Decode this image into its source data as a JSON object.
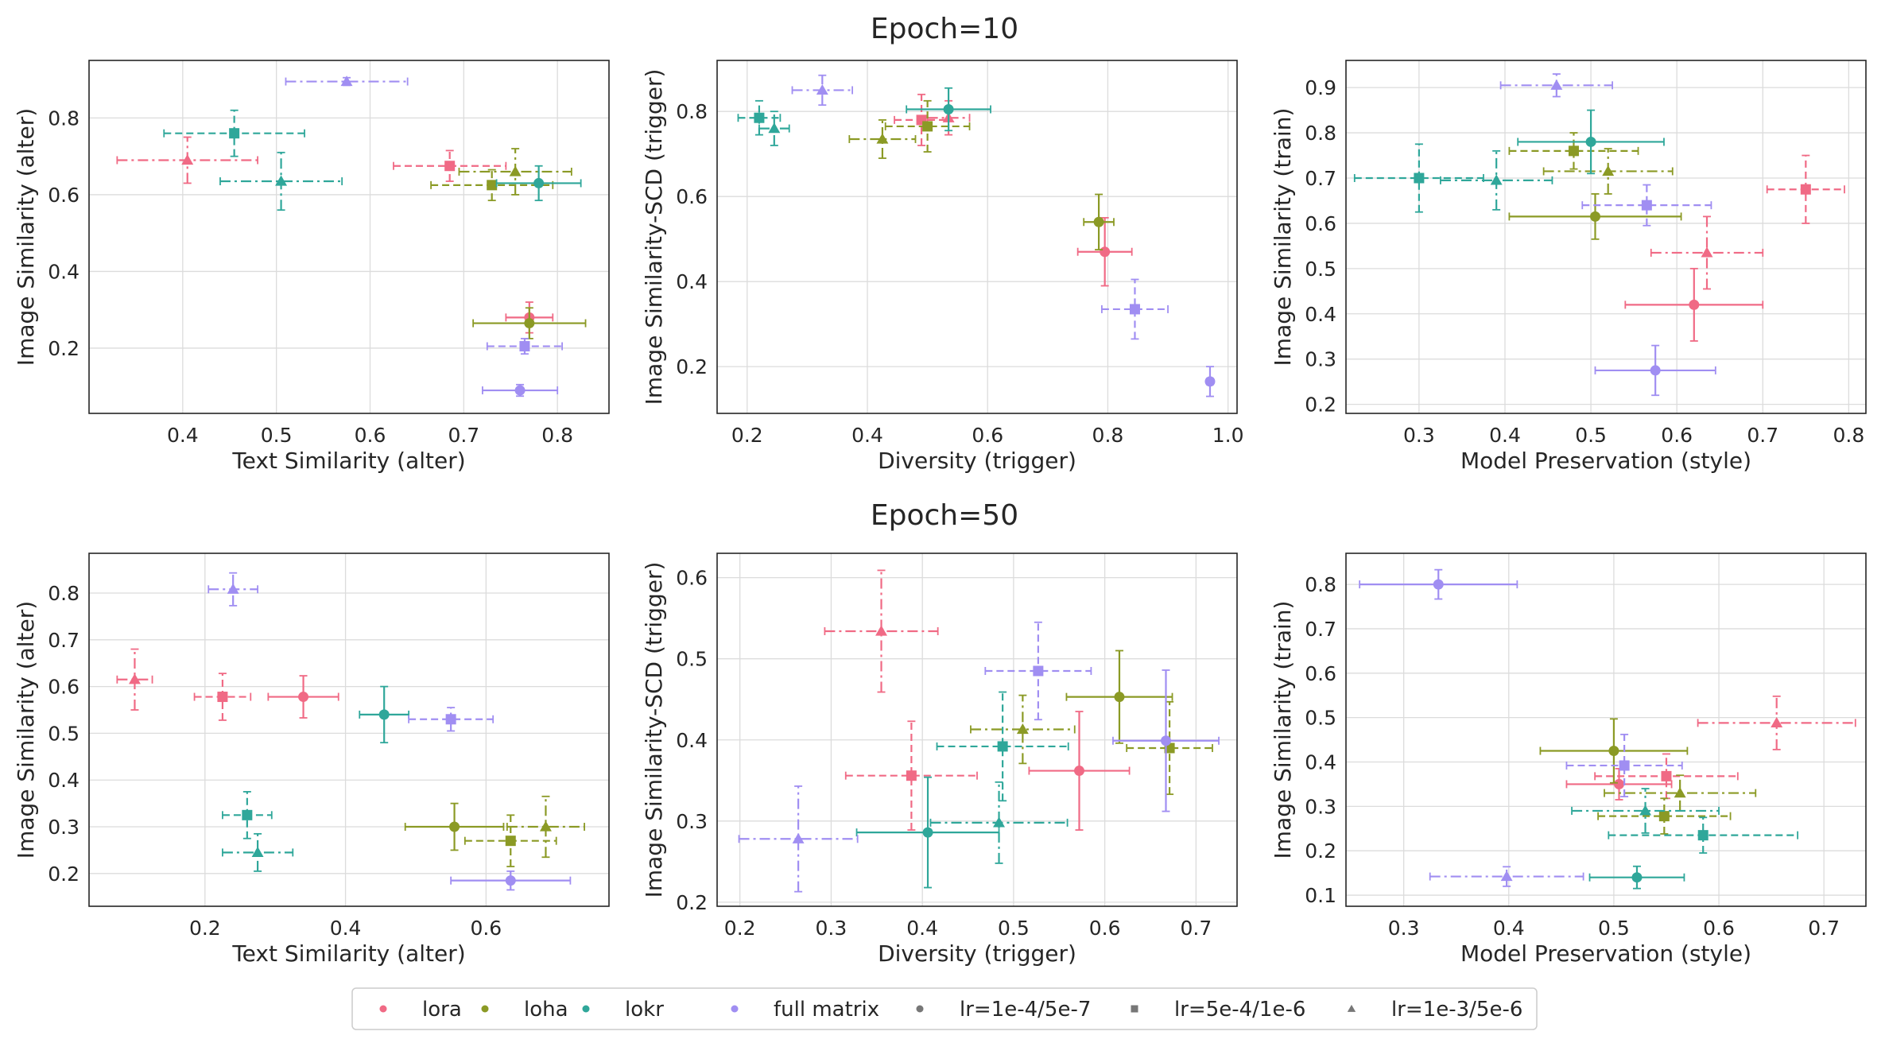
{
  "figure": {
    "row_titles": [
      "Epoch=10",
      "Epoch=50"
    ],
    "colors": {
      "lora": "#f06a85",
      "loha": "#8b9a25",
      "lokr": "#2fa79a",
      "full matrix": "#a08ef2"
    },
    "legend": {
      "placement": "bottom-center",
      "methods": [
        {
          "label": "lora",
          "color": "#f06a85"
        },
        {
          "label": "loha",
          "color": "#8b9a25"
        },
        {
          "label": "lokr",
          "color": "#2fa79a"
        },
        {
          "label": "full matrix",
          "color": "#a08ef2"
        }
      ],
      "lr_settings": [
        {
          "label": "lr=1e-4/5e-7",
          "marker": "circle",
          "line_style": "solid"
        },
        {
          "label": "lr=5e-4/1e-6",
          "marker": "square",
          "line_style": "dashed"
        },
        {
          "label": "lr=1e-3/5e-6",
          "marker": "triangle",
          "line_style": "dashdot"
        }
      ]
    }
  },
  "chart_data": [
    {
      "type": "scatter",
      "panel": "epoch10-text",
      "grid": true,
      "xlabel": "Text Similarity (alter)",
      "ylabel": "Image Similarity (alter)",
      "xlim": [
        0.3,
        0.855
      ],
      "ylim": [
        0.03,
        0.95
      ],
      "xticks": [
        0.4,
        0.5,
        0.6,
        0.7,
        0.8
      ],
      "yticks": [
        0.2,
        0.4,
        0.6,
        0.8
      ],
      "points": [
        {
          "method": "lora",
          "lr": 0,
          "x": 0.77,
          "y": 0.28,
          "xerr": 0.025,
          "yerr": 0.04
        },
        {
          "method": "lora",
          "lr": 1,
          "x": 0.685,
          "y": 0.675,
          "xerr": 0.06,
          "yerr": 0.04
        },
        {
          "method": "lora",
          "lr": 2,
          "x": 0.405,
          "y": 0.69,
          "xerr": 0.075,
          "yerr": 0.06
        },
        {
          "method": "loha",
          "lr": 0,
          "x": 0.77,
          "y": 0.265,
          "xerr": 0.06,
          "yerr": 0.04
        },
        {
          "method": "loha",
          "lr": 1,
          "x": 0.73,
          "y": 0.625,
          "xerr": 0.065,
          "yerr": 0.04
        },
        {
          "method": "loha",
          "lr": 2,
          "x": 0.755,
          "y": 0.66,
          "xerr": 0.06,
          "yerr": 0.06
        },
        {
          "method": "lokr",
          "lr": 0,
          "x": 0.78,
          "y": 0.63,
          "xerr": 0.045,
          "yerr": 0.045
        },
        {
          "method": "lokr",
          "lr": 1,
          "x": 0.455,
          "y": 0.76,
          "xerr": 0.075,
          "yerr": 0.06
        },
        {
          "method": "lokr",
          "lr": 2,
          "x": 0.505,
          "y": 0.635,
          "xerr": 0.065,
          "yerr": 0.075
        },
        {
          "method": "full matrix",
          "lr": 0,
          "x": 0.76,
          "y": 0.09,
          "xerr": 0.04,
          "yerr": 0.015
        },
        {
          "method": "full matrix",
          "lr": 1,
          "x": 0.765,
          "y": 0.205,
          "xerr": 0.04,
          "yerr": 0.02
        },
        {
          "method": "full matrix",
          "lr": 2,
          "x": 0.575,
          "y": 0.895,
          "xerr": 0.065,
          "yerr": 0.01
        }
      ]
    },
    {
      "type": "scatter",
      "panel": "epoch10-diversity",
      "grid": true,
      "xlabel": "Diversity (trigger)",
      "ylabel": "Image Similarity-SCD (trigger)",
      "xlim": [
        0.15,
        1.015
      ],
      "ylim": [
        0.09,
        0.92
      ],
      "xticks": [
        0.2,
        0.4,
        0.6,
        0.8,
        1.0
      ],
      "yticks": [
        0.2,
        0.4,
        0.6,
        0.8
      ],
      "points": [
        {
          "method": "lora",
          "lr": 0,
          "x": 0.795,
          "y": 0.47,
          "xerr": 0.045,
          "yerr": 0.08
        },
        {
          "method": "lora",
          "lr": 1,
          "x": 0.49,
          "y": 0.78,
          "xerr": 0.045,
          "yerr": 0.06
        },
        {
          "method": "lora",
          "lr": 2,
          "x": 0.535,
          "y": 0.785,
          "xerr": 0.035,
          "yerr": 0.04
        },
        {
          "method": "loha",
          "lr": 0,
          "x": 0.785,
          "y": 0.54,
          "xerr": 0.025,
          "yerr": 0.065
        },
        {
          "method": "loha",
          "lr": 1,
          "x": 0.5,
          "y": 0.765,
          "xerr": 0.07,
          "yerr": 0.06
        },
        {
          "method": "loha",
          "lr": 2,
          "x": 0.425,
          "y": 0.735,
          "xerr": 0.055,
          "yerr": 0.045
        },
        {
          "method": "lokr",
          "lr": 0,
          "x": 0.535,
          "y": 0.805,
          "xerr": 0.07,
          "yerr": 0.05
        },
        {
          "method": "lokr",
          "lr": 1,
          "x": 0.22,
          "y": 0.785,
          "xerr": 0.035,
          "yerr": 0.04
        },
        {
          "method": "lokr",
          "lr": 2,
          "x": 0.245,
          "y": 0.76,
          "xerr": 0.025,
          "yerr": 0.04
        },
        {
          "method": "full matrix",
          "lr": 0,
          "x": 0.97,
          "y": 0.165,
          "xerr": 0.005,
          "yerr": 0.035
        },
        {
          "method": "full matrix",
          "lr": 1,
          "x": 0.845,
          "y": 0.335,
          "xerr": 0.055,
          "yerr": 0.07
        },
        {
          "method": "full matrix",
          "lr": 2,
          "x": 0.325,
          "y": 0.85,
          "xerr": 0.05,
          "yerr": 0.035
        }
      ]
    },
    {
      "type": "scatter",
      "panel": "epoch10-preservation",
      "grid": true,
      "xlabel": "Model Preservation (style)",
      "ylabel": "Image Similarity (train)",
      "xlim": [
        0.215,
        0.82
      ],
      "ylim": [
        0.18,
        0.96
      ],
      "xticks": [
        0.3,
        0.4,
        0.5,
        0.6,
        0.7,
        0.8
      ],
      "yticks": [
        0.2,
        0.3,
        0.4,
        0.5,
        0.6,
        0.7,
        0.8,
        0.9
      ],
      "points": [
        {
          "method": "lora",
          "lr": 0,
          "x": 0.62,
          "y": 0.42,
          "xerr": 0.08,
          "yerr": 0.08
        },
        {
          "method": "lora",
          "lr": 1,
          "x": 0.75,
          "y": 0.675,
          "xerr": 0.045,
          "yerr": 0.075
        },
        {
          "method": "lora",
          "lr": 2,
          "x": 0.635,
          "y": 0.535,
          "xerr": 0.065,
          "yerr": 0.08
        },
        {
          "method": "loha",
          "lr": 0,
          "x": 0.505,
          "y": 0.615,
          "xerr": 0.1,
          "yerr": 0.05
        },
        {
          "method": "loha",
          "lr": 1,
          "x": 0.48,
          "y": 0.76,
          "xerr": 0.075,
          "yerr": 0.04
        },
        {
          "method": "loha",
          "lr": 2,
          "x": 0.52,
          "y": 0.715,
          "xerr": 0.075,
          "yerr": 0.05
        },
        {
          "method": "lokr",
          "lr": 0,
          "x": 0.5,
          "y": 0.78,
          "xerr": 0.085,
          "yerr": 0.07
        },
        {
          "method": "lokr",
          "lr": 1,
          "x": 0.3,
          "y": 0.7,
          "xerr": 0.075,
          "yerr": 0.075
        },
        {
          "method": "lokr",
          "lr": 2,
          "x": 0.39,
          "y": 0.695,
          "xerr": 0.065,
          "yerr": 0.065
        },
        {
          "method": "full matrix",
          "lr": 0,
          "x": 0.575,
          "y": 0.275,
          "xerr": 0.07,
          "yerr": 0.055
        },
        {
          "method": "full matrix",
          "lr": 1,
          "x": 0.565,
          "y": 0.64,
          "xerr": 0.075,
          "yerr": 0.045
        },
        {
          "method": "full matrix",
          "lr": 2,
          "x": 0.46,
          "y": 0.905,
          "xerr": 0.065,
          "yerr": 0.025
        }
      ]
    },
    {
      "type": "scatter",
      "panel": "epoch50-text",
      "grid": true,
      "xlabel": "Text Similarity (alter)",
      "ylabel": "Image Similarity (alter)",
      "xlim": [
        0.035,
        0.775
      ],
      "ylim": [
        0.13,
        0.885
      ],
      "xticks": [
        0.2,
        0.4,
        0.6
      ],
      "yticks": [
        0.2,
        0.3,
        0.4,
        0.5,
        0.6,
        0.7,
        0.8
      ],
      "points": [
        {
          "method": "lora",
          "lr": 0,
          "x": 0.34,
          "y": 0.578,
          "xerr": 0.05,
          "yerr": 0.045
        },
        {
          "method": "lora",
          "lr": 1,
          "x": 0.225,
          "y": 0.578,
          "xerr": 0.04,
          "yerr": 0.05
        },
        {
          "method": "lora",
          "lr": 2,
          "x": 0.1,
          "y": 0.615,
          "xerr": 0.025,
          "yerr": 0.065
        },
        {
          "method": "loha",
          "lr": 0,
          "x": 0.555,
          "y": 0.3,
          "xerr": 0.07,
          "yerr": 0.05
        },
        {
          "method": "loha",
          "lr": 1,
          "x": 0.635,
          "y": 0.27,
          "xerr": 0.065,
          "yerr": 0.055
        },
        {
          "method": "loha",
          "lr": 2,
          "x": 0.685,
          "y": 0.3,
          "xerr": 0.055,
          "yerr": 0.065
        },
        {
          "method": "lokr",
          "lr": 0,
          "x": 0.455,
          "y": 0.54,
          "xerr": 0.035,
          "yerr": 0.06
        },
        {
          "method": "lokr",
          "lr": 1,
          "x": 0.26,
          "y": 0.325,
          "xerr": 0.035,
          "yerr": 0.05
        },
        {
          "method": "lokr",
          "lr": 2,
          "x": 0.275,
          "y": 0.245,
          "xerr": 0.05,
          "yerr": 0.04
        },
        {
          "method": "full matrix",
          "lr": 0,
          "x": 0.635,
          "y": 0.185,
          "xerr": 0.085,
          "yerr": 0.02
        },
        {
          "method": "full matrix",
          "lr": 1,
          "x": 0.55,
          "y": 0.53,
          "xerr": 0.06,
          "yerr": 0.025
        },
        {
          "method": "full matrix",
          "lr": 2,
          "x": 0.24,
          "y": 0.808,
          "xerr": 0.035,
          "yerr": 0.035
        }
      ]
    },
    {
      "type": "scatter",
      "panel": "epoch50-diversity",
      "grid": true,
      "xlabel": "Diversity (trigger)",
      "ylabel": "Image Similarity-SCD (trigger)",
      "xlim": [
        0.175,
        0.745
      ],
      "ylim": [
        0.195,
        0.63
      ],
      "xticks": [
        0.2,
        0.3,
        0.4,
        0.5,
        0.6,
        0.7
      ],
      "yticks": [
        0.2,
        0.3,
        0.4,
        0.5,
        0.6
      ],
      "points": [
        {
          "method": "lora",
          "lr": 0,
          "x": 0.572,
          "y": 0.362,
          "xerr": 0.055,
          "yerr": 0.073
        },
        {
          "method": "lora",
          "lr": 1,
          "x": 0.388,
          "y": 0.356,
          "xerr": 0.072,
          "yerr": 0.067
        },
        {
          "method": "lora",
          "lr": 2,
          "x": 0.355,
          "y": 0.534,
          "xerr": 0.062,
          "yerr": 0.075
        },
        {
          "method": "loha",
          "lr": 0,
          "x": 0.616,
          "y": 0.453,
          "xerr": 0.058,
          "yerr": 0.057
        },
        {
          "method": "loha",
          "lr": 1,
          "x": 0.671,
          "y": 0.39,
          "xerr": 0.047,
          "yerr": 0.057
        },
        {
          "method": "loha",
          "lr": 2,
          "x": 0.51,
          "y": 0.413,
          "xerr": 0.057,
          "yerr": 0.042
        },
        {
          "method": "lokr",
          "lr": 0,
          "x": 0.406,
          "y": 0.286,
          "xerr": 0.078,
          "yerr": 0.068
        },
        {
          "method": "lokr",
          "lr": 1,
          "x": 0.488,
          "y": 0.392,
          "xerr": 0.072,
          "yerr": 0.067
        },
        {
          "method": "lokr",
          "lr": 2,
          "x": 0.484,
          "y": 0.298,
          "xerr": 0.075,
          "yerr": 0.05
        },
        {
          "method": "full matrix",
          "lr": 0,
          "x": 0.667,
          "y": 0.399,
          "xerr": 0.058,
          "yerr": 0.087
        },
        {
          "method": "full matrix",
          "lr": 1,
          "x": 0.527,
          "y": 0.485,
          "xerr": 0.058,
          "yerr": 0.06
        },
        {
          "method": "full matrix",
          "lr": 2,
          "x": 0.264,
          "y": 0.278,
          "xerr": 0.065,
          "yerr": 0.065
        }
      ]
    },
    {
      "type": "scatter",
      "panel": "epoch50-preservation",
      "grid": true,
      "xlabel": "Model Preservation (style)",
      "ylabel": "Image Similarity (train)",
      "xlim": [
        0.245,
        0.74
      ],
      "ylim": [
        0.075,
        0.87
      ],
      "xticks": [
        0.3,
        0.4,
        0.5,
        0.6,
        0.7
      ],
      "yticks": [
        0.1,
        0.2,
        0.3,
        0.4,
        0.5,
        0.6,
        0.7,
        0.8
      ],
      "points": [
        {
          "method": "lora",
          "lr": 0,
          "x": 0.505,
          "y": 0.35,
          "xerr": 0.05,
          "yerr": 0.035
        },
        {
          "method": "lora",
          "lr": 1,
          "x": 0.55,
          "y": 0.368,
          "xerr": 0.068,
          "yerr": 0.05
        },
        {
          "method": "lora",
          "lr": 2,
          "x": 0.655,
          "y": 0.488,
          "xerr": 0.075,
          "yerr": 0.06
        },
        {
          "method": "loha",
          "lr": 0,
          "x": 0.5,
          "y": 0.425,
          "xerr": 0.07,
          "yerr": 0.072
        },
        {
          "method": "loha",
          "lr": 1,
          "x": 0.548,
          "y": 0.278,
          "xerr": 0.063,
          "yerr": 0.04
        },
        {
          "method": "loha",
          "lr": 2,
          "x": 0.563,
          "y": 0.33,
          "xerr": 0.072,
          "yerr": 0.04
        },
        {
          "method": "lokr",
          "lr": 0,
          "x": 0.522,
          "y": 0.14,
          "xerr": 0.045,
          "yerr": 0.025
        },
        {
          "method": "lokr",
          "lr": 1,
          "x": 0.585,
          "y": 0.235,
          "xerr": 0.09,
          "yerr": 0.04
        },
        {
          "method": "lokr",
          "lr": 2,
          "x": 0.53,
          "y": 0.29,
          "xerr": 0.07,
          "yerr": 0.05
        },
        {
          "method": "full matrix",
          "lr": 0,
          "x": 0.333,
          "y": 0.8,
          "xerr": 0.075,
          "yerr": 0.033
        },
        {
          "method": "full matrix",
          "lr": 1,
          "x": 0.51,
          "y": 0.392,
          "xerr": 0.055,
          "yerr": 0.07
        },
        {
          "method": "full matrix",
          "lr": 2,
          "x": 0.398,
          "y": 0.142,
          "xerr": 0.073,
          "yerr": 0.022
        }
      ]
    }
  ]
}
